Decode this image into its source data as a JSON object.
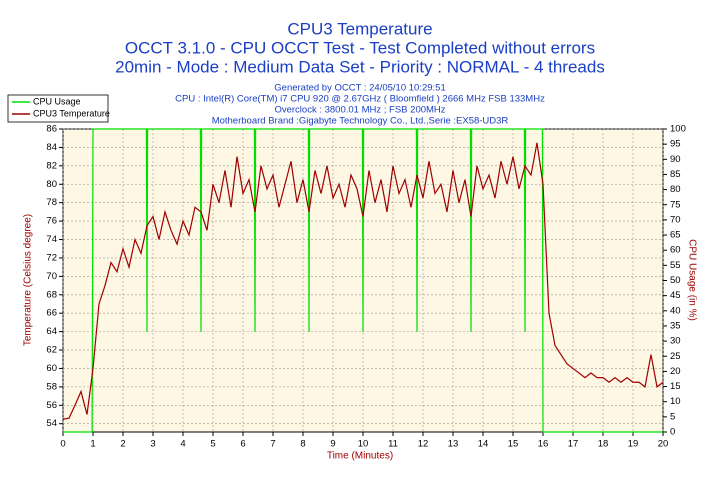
{
  "chart_data": {
    "type": "line",
    "title": "CPU3 Temperature",
    "subtitle": "OCCT 3.1.0 - CPU OCCT Test - Test Completed without errors",
    "subtitle2": "20min - Mode : Medium Data Set - Priority : NORMAL - 4 threads",
    "info": [
      "Generated by OCCT : 24/05/10 10:29:51",
      "CPU : Intel(R) Core(TM) i7 CPU 920 @ 2.67GHz ( Bloomfield ) 2666 MHz FSB 133MHz",
      "Overclock : 3800.01 MHz ; FSB 200MHz",
      "Motherboard Brand :Gigabyte Technology Co., Ltd.,Serie :EX58-UD3R"
    ],
    "xlabel": "Time (Minutes)",
    "ylabel": "Temperature (Celsius degree)",
    "y2label": "CPU Usage (in %)",
    "xlim": [
      0,
      20
    ],
    "xticks": [
      0,
      1,
      2,
      3,
      4,
      5,
      6,
      7,
      8,
      9,
      10,
      11,
      12,
      13,
      14,
      15,
      16,
      17,
      18,
      19,
      20
    ],
    "ylim": [
      53.1,
      86
    ],
    "yticks": [
      54,
      56,
      58,
      60,
      62,
      64,
      66,
      68,
      70,
      72,
      74,
      76,
      78,
      80,
      82,
      84,
      86
    ],
    "y2lim": [
      0,
      100
    ],
    "y2ticks": [
      0,
      5,
      10,
      15,
      20,
      25,
      30,
      35,
      40,
      45,
      50,
      55,
      60,
      65,
      70,
      75,
      80,
      85,
      90,
      95,
      100
    ],
    "grid": true,
    "series": [
      {
        "name": "CPU Usage",
        "color": "#00e000",
        "axis": "y2",
        "x": [
          0,
          0.97,
          1.0,
          2.78,
          2.8,
          2.82,
          4.58,
          4.6,
          4.62,
          6.38,
          6.4,
          6.42,
          8.18,
          8.2,
          8.22,
          9.98,
          10.0,
          10.02,
          11.78,
          11.8,
          11.82,
          13.58,
          13.6,
          13.62,
          15.38,
          15.4,
          15.42,
          15.98,
          16.0,
          20
        ],
        "values": [
          0,
          0,
          100,
          100,
          33,
          100,
          100,
          33,
          100,
          100,
          33,
          100,
          100,
          33,
          100,
          100,
          33,
          100,
          100,
          33,
          100,
          100,
          33,
          100,
          100,
          33,
          100,
          100,
          0,
          0
        ]
      },
      {
        "name": "CPU3 Temperature",
        "color": "#a00000",
        "axis": "y",
        "x": [
          0,
          0.2,
          0.4,
          0.6,
          0.8,
          1,
          1.2,
          1.4,
          1.6,
          1.8,
          2,
          2.2,
          2.4,
          2.6,
          2.8,
          3,
          3.2,
          3.4,
          3.6,
          3.8,
          4,
          4.2,
          4.4,
          4.6,
          4.8,
          5,
          5.2,
          5.4,
          5.6,
          5.8,
          6,
          6.2,
          6.4,
          6.6,
          6.8,
          7,
          7.2,
          7.4,
          7.6,
          7.8,
          8,
          8.2,
          8.4,
          8.6,
          8.8,
          9,
          9.2,
          9.4,
          9.6,
          9.8,
          10,
          10.2,
          10.4,
          10.6,
          10.8,
          11,
          11.2,
          11.4,
          11.6,
          11.8,
          12,
          12.2,
          12.4,
          12.6,
          12.8,
          13,
          13.2,
          13.4,
          13.6,
          13.8,
          14,
          14.2,
          14.4,
          14.6,
          14.8,
          15,
          15.2,
          15.4,
          15.6,
          15.8,
          16,
          16.2,
          16.4,
          16.6,
          16.8,
          17,
          17.2,
          17.4,
          17.6,
          17.8,
          18,
          18.2,
          18.4,
          18.6,
          18.8,
          19,
          19.2,
          19.4,
          19.6,
          19.8,
          20
        ],
        "values": [
          54.5,
          54.6,
          56,
          57.5,
          55,
          60,
          67,
          69,
          71.5,
          70.5,
          73,
          71,
          74,
          72.5,
          75.5,
          76.5,
          74,
          77,
          75,
          73.5,
          76,
          74.5,
          77.5,
          77,
          75,
          80,
          78,
          81.5,
          77.5,
          83,
          79,
          80.5,
          77,
          82,
          79.5,
          81,
          77.5,
          80,
          82.5,
          78,
          80.5,
          77,
          81.5,
          79,
          82,
          78.5,
          80,
          77.5,
          81,
          79.5,
          76.5,
          81.5,
          78,
          80.5,
          77,
          82,
          79,
          80.5,
          77.5,
          81,
          78.5,
          82.5,
          79,
          80,
          77,
          81.5,
          78,
          80.5,
          76.5,
          82,
          79.5,
          81,
          78.5,
          82.5,
          80,
          83,
          79.5,
          82,
          81,
          84.5,
          80,
          66,
          62.5,
          61.5,
          60.5,
          60,
          59.5,
          59,
          59.5,
          59,
          59,
          58.5,
          59,
          58.5,
          59,
          58.5,
          58.5,
          58,
          61.5,
          58,
          58.5
        ]
      }
    ]
  }
}
